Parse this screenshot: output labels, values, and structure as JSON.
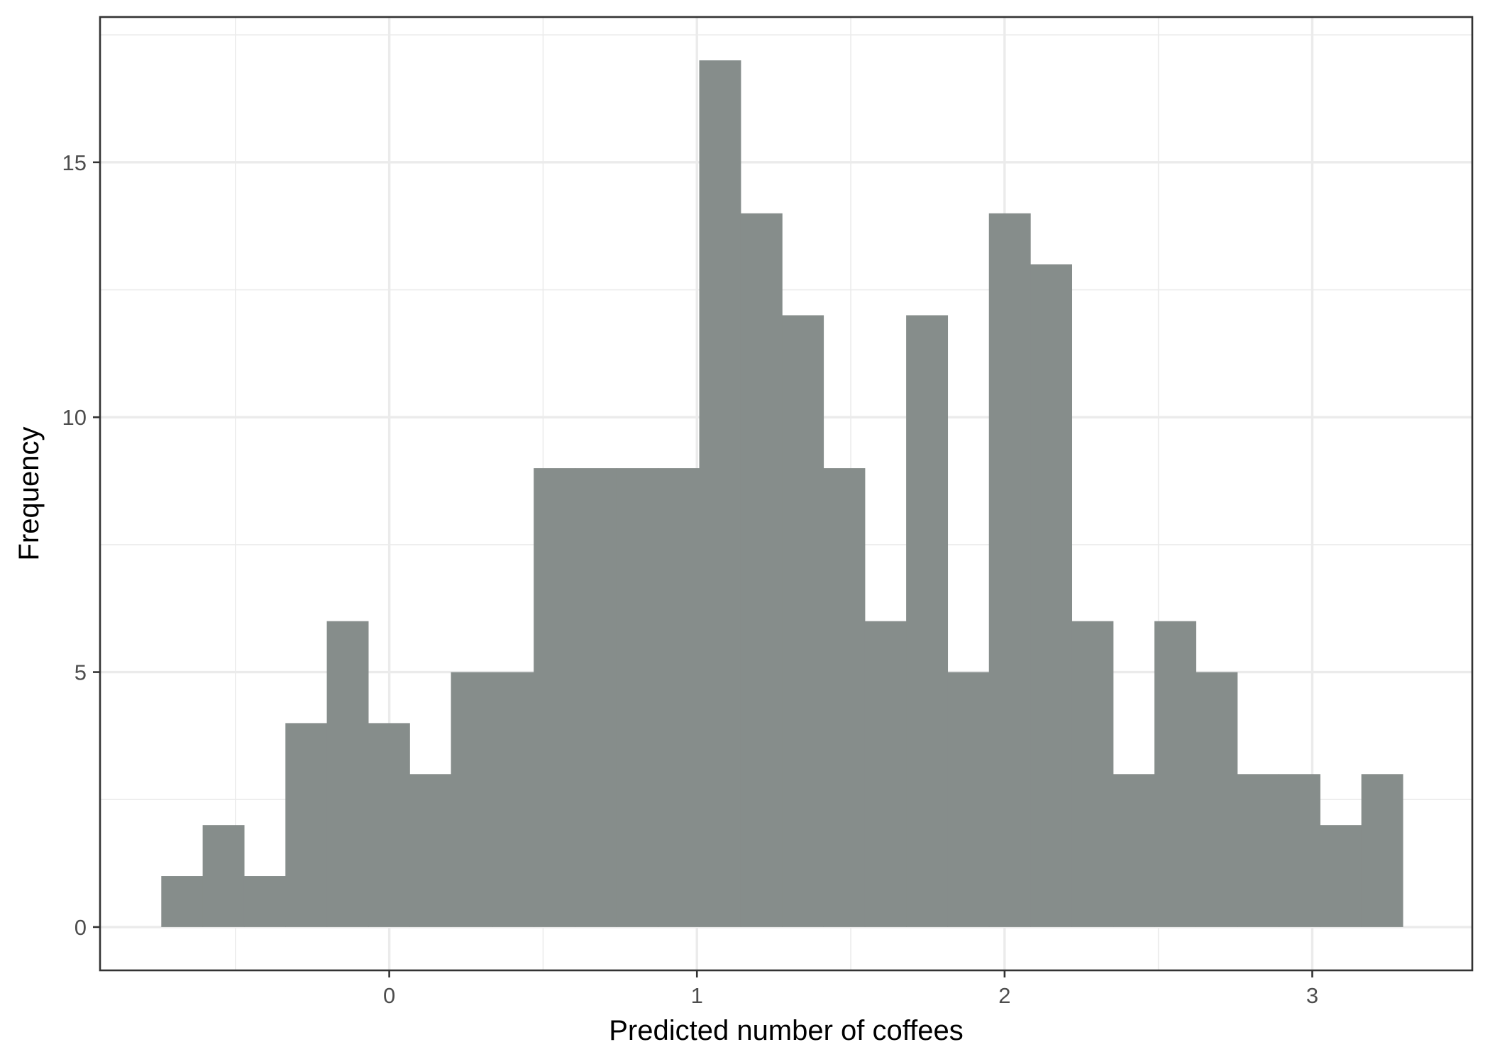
{
  "chart_data": {
    "type": "bar",
    "subtype": "histogram",
    "xlabel": "Predicted number of coffees",
    "ylabel": "Frequency",
    "xlim": [
      -0.94,
      3.52
    ],
    "ylim": [
      -0.85,
      17.85
    ],
    "x_ticks": [
      0,
      1,
      2,
      3
    ],
    "x_minor_ticks": [
      -0.5,
      0.5,
      1.5,
      2.5
    ],
    "y_ticks": [
      0,
      5,
      10,
      15
    ],
    "y_minor_ticks": [
      2.5,
      7.5,
      12.5,
      17.5
    ],
    "bin_width": 0.1345,
    "bin_start": -0.741,
    "values": [
      1,
      2,
      1,
      4,
      6,
      4,
      3,
      5,
      5,
      9,
      9,
      9,
      9,
      17,
      14,
      12,
      9,
      6,
      12,
      5,
      14,
      13,
      6,
      3,
      6,
      5,
      3,
      3,
      2,
      3
    ],
    "bar_color": "#868d8b",
    "grid": true,
    "legend": "none"
  }
}
